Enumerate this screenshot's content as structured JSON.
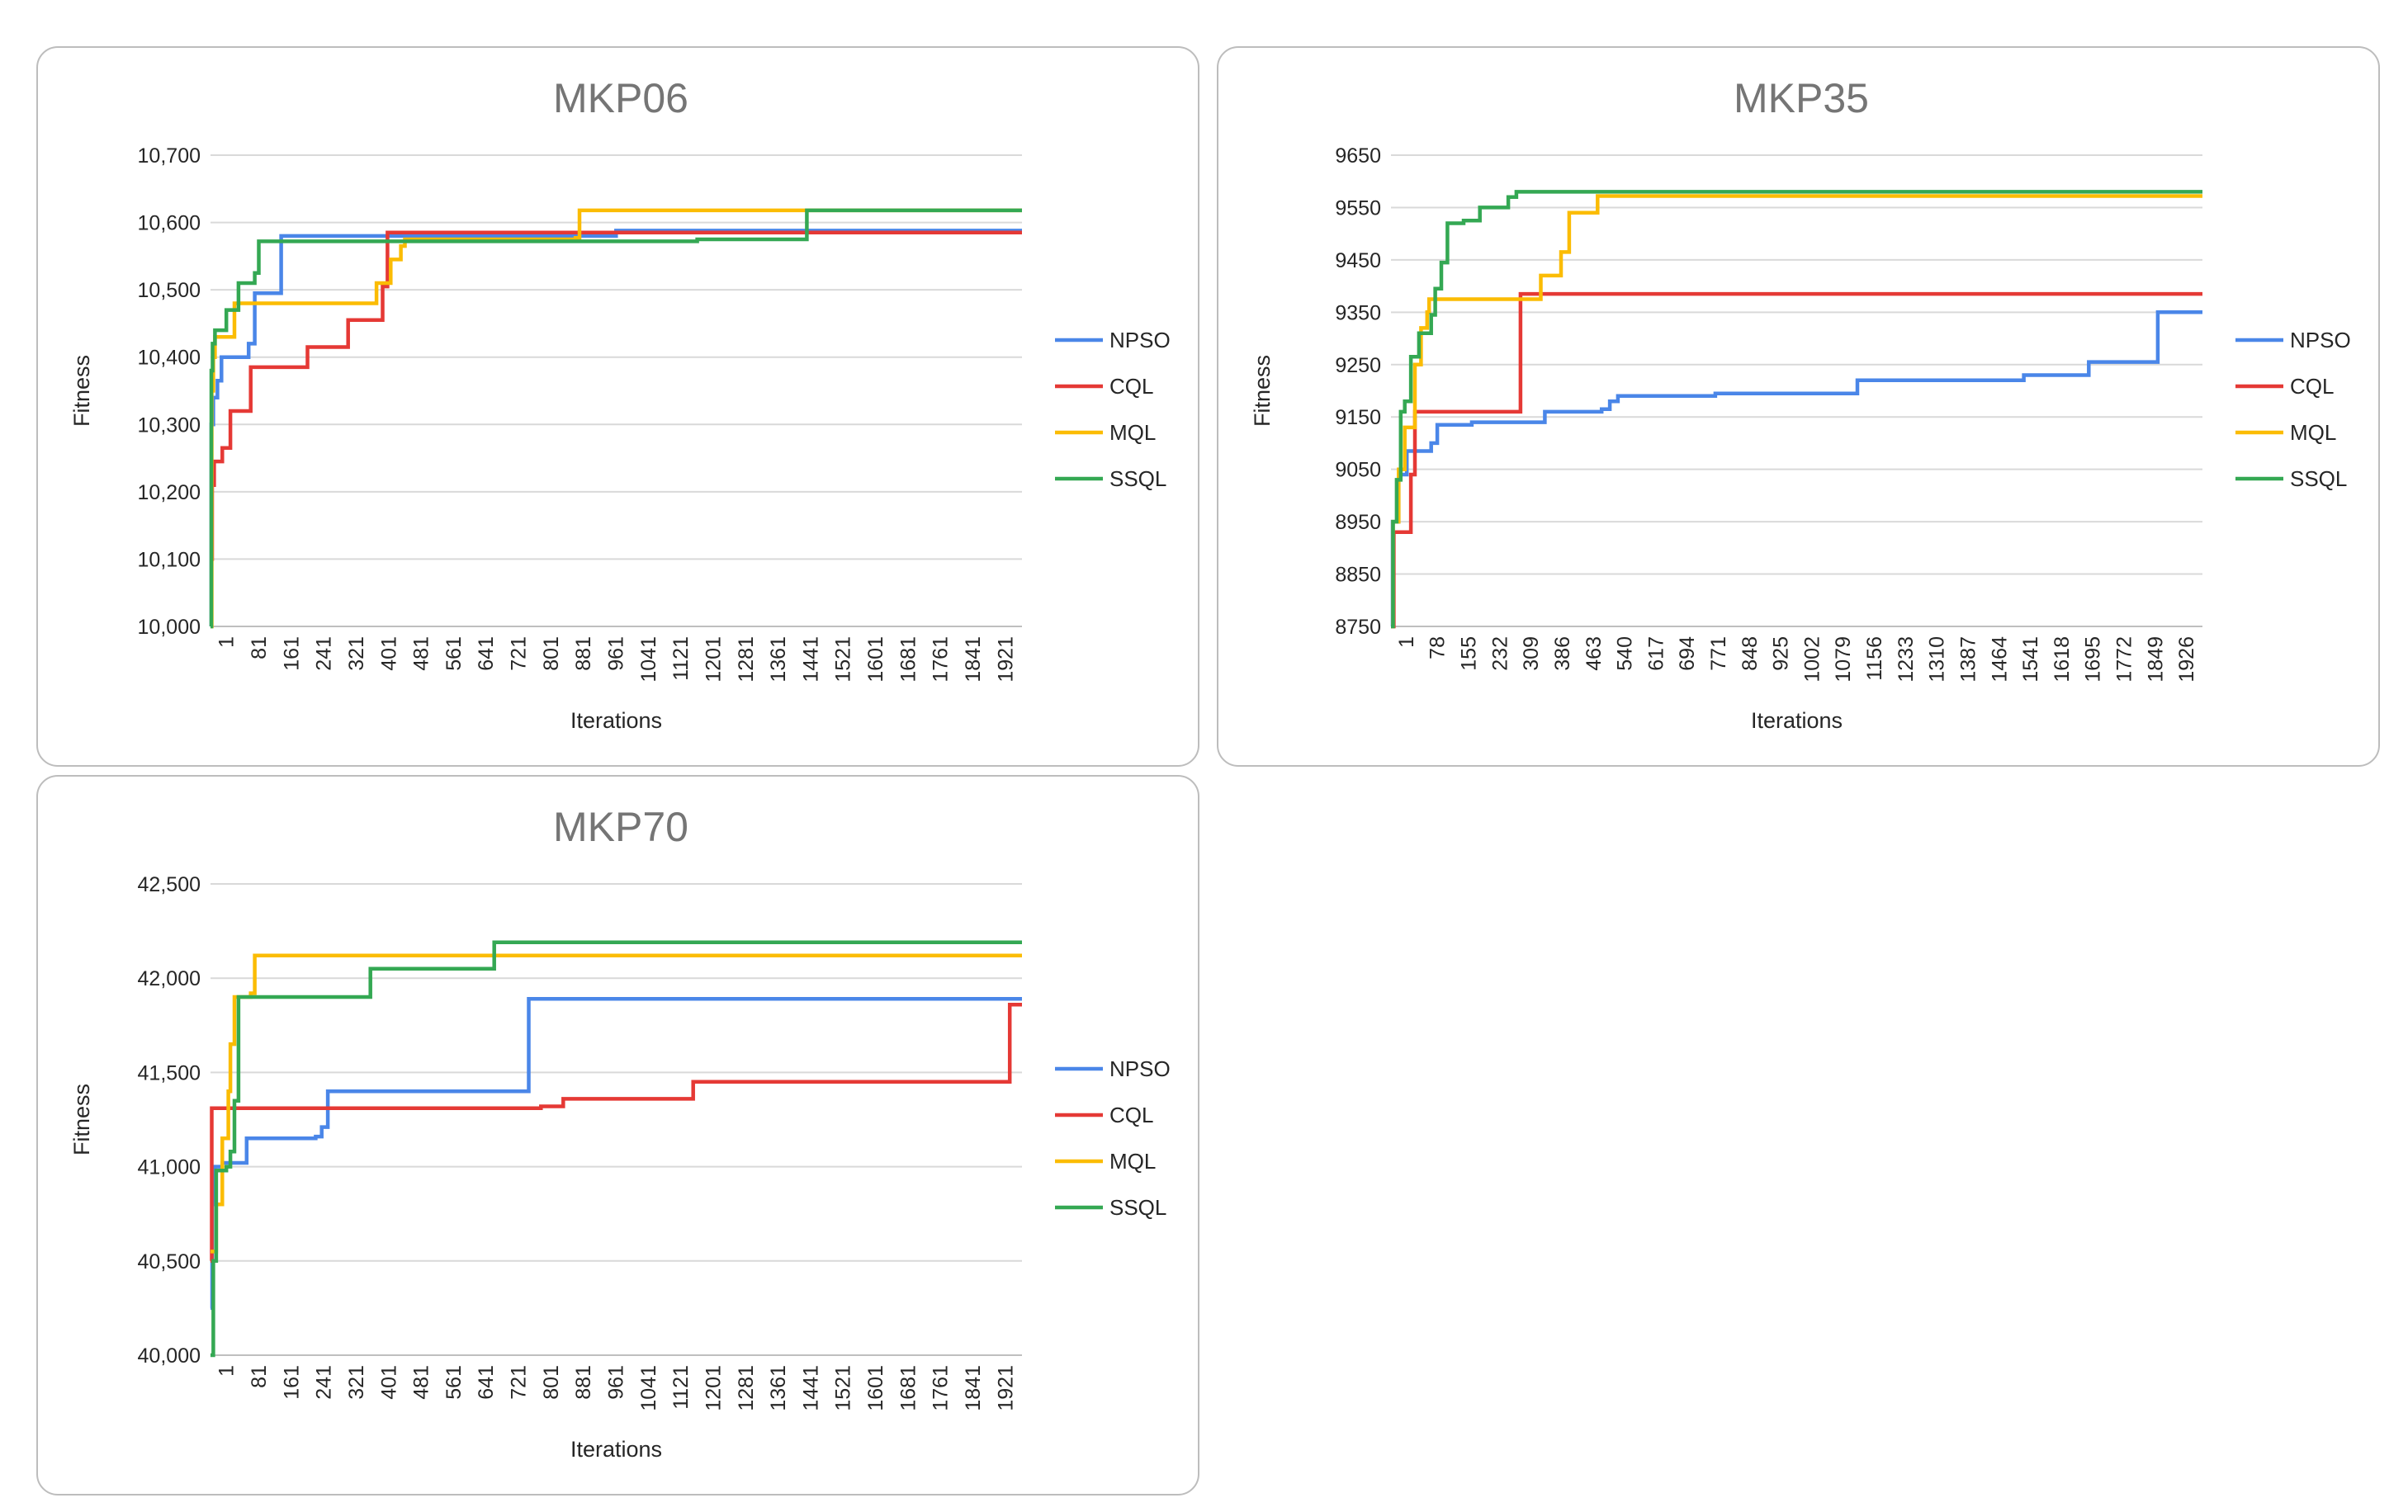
{
  "colors": {
    "NPSO": "#4a86e8",
    "CQL": "#e53935",
    "MQL": "#fbbc04",
    "SSQL": "#34a853"
  },
  "chart_data": [
    {
      "type": "line",
      "title": "MKP06",
      "xlabel": "Iterations",
      "ylabel": "Fitness",
      "ylim": [
        10000,
        10700
      ],
      "xlim": [
        1,
        2000
      ],
      "yticks": [
        10000,
        10100,
        10200,
        10300,
        10400,
        10500,
        10600,
        10700
      ],
      "ytick_labels": [
        "10,000",
        "10,100",
        "10,200",
        "10,300",
        "10,400",
        "10,500",
        "10,600",
        "10,700"
      ],
      "xtick_labels": [
        "1",
        "81",
        "161",
        "241",
        "321",
        "401",
        "481",
        "561",
        "641",
        "721",
        "801",
        "881",
        "961",
        "1041",
        "1121",
        "1201",
        "1281",
        "1361",
        "1441",
        "1521",
        "1601",
        "1681",
        "1761",
        "1841",
        "1921"
      ],
      "series": [
        {
          "name": "NPSO",
          "step": [
            [
              1,
              10000
            ],
            [
              3,
              10300
            ],
            [
              8,
              10340
            ],
            [
              18,
              10365
            ],
            [
              28,
              10400
            ],
            [
              95,
              10420
            ],
            [
              110,
              10495
            ],
            [
              175,
              10580
            ],
            [
              1000,
              10588
            ],
            [
              2000,
              10588
            ]
          ]
        },
        {
          "name": "CQL",
          "step": [
            [
              1,
              10100
            ],
            [
              5,
              10210
            ],
            [
              10,
              10245
            ],
            [
              30,
              10265
            ],
            [
              50,
              10320
            ],
            [
              100,
              10385
            ],
            [
              240,
              10415
            ],
            [
              340,
              10455
            ],
            [
              425,
              10505
            ],
            [
              437,
              10585
            ],
            [
              2000,
              10585
            ]
          ]
        },
        {
          "name": "MQL",
          "step": [
            [
              1,
              10000
            ],
            [
              4,
              10350
            ],
            [
              8,
              10400
            ],
            [
              12,
              10430
            ],
            [
              60,
              10480
            ],
            [
              410,
              10510
            ],
            [
              445,
              10545
            ],
            [
              470,
              10565
            ],
            [
              480,
              10575
            ],
            [
              900,
              10577
            ],
            [
              910,
              10618
            ],
            [
              2000,
              10618
            ]
          ]
        },
        {
          "name": "SSQL",
          "step": [
            [
              1,
              10000
            ],
            [
              3,
              10380
            ],
            [
              6,
              10420
            ],
            [
              12,
              10440
            ],
            [
              40,
              10470
            ],
            [
              70,
              10510
            ],
            [
              110,
              10525
            ],
            [
              120,
              10572
            ],
            [
              1200,
              10575
            ],
            [
              1470,
              10618
            ],
            [
              2000,
              10618
            ]
          ]
        }
      ]
    },
    {
      "type": "line",
      "title": "MKP35",
      "xlabel": "Iterations",
      "ylabel": "Fitness",
      "ylim": [
        8750,
        9650
      ],
      "xlim": [
        1,
        2000
      ],
      "yticks": [
        8750,
        8850,
        8950,
        9050,
        9150,
        9250,
        9350,
        9450,
        9550,
        9650
      ],
      "ytick_labels": [
        "8750",
        "8850",
        "8950",
        "9050",
        "9150",
        "9250",
        "9350",
        "9450",
        "9550",
        "9650"
      ],
      "xtick_labels": [
        "1",
        "78",
        "155",
        "232",
        "309",
        "386",
        "463",
        "540",
        "617",
        "694",
        "771",
        "848",
        "925",
        "1002",
        "1079",
        "1156",
        "1233",
        "1310",
        "1387",
        "1464",
        "1541",
        "1618",
        "1695",
        "1772",
        "1849",
        "1926"
      ],
      "series": [
        {
          "name": "NPSO",
          "step": [
            [
              1,
              8750
            ],
            [
              5,
              8950
            ],
            [
              20,
              9040
            ],
            [
              40,
              9085
            ],
            [
              100,
              9100
            ],
            [
              115,
              9135
            ],
            [
              200,
              9140
            ],
            [
              380,
              9160
            ],
            [
              520,
              9165
            ],
            [
              540,
              9180
            ],
            [
              560,
              9190
            ],
            [
              800,
              9195
            ],
            [
              1150,
              9220
            ],
            [
              1560,
              9230
            ],
            [
              1720,
              9255
            ],
            [
              1890,
              9350
            ],
            [
              2000,
              9350
            ]
          ]
        },
        {
          "name": "CQL",
          "step": [
            [
              1,
              8750
            ],
            [
              8,
              8930
            ],
            [
              50,
              9040
            ],
            [
              60,
              9160
            ],
            [
              320,
              9385
            ],
            [
              2000,
              9385
            ]
          ]
        },
        {
          "name": "MQL",
          "step": [
            [
              1,
              8750
            ],
            [
              6,
              8950
            ],
            [
              20,
              9050
            ],
            [
              35,
              9130
            ],
            [
              60,
              9250
            ],
            [
              75,
              9320
            ],
            [
              90,
              9350
            ],
            [
              95,
              9375
            ],
            [
              370,
              9420
            ],
            [
              420,
              9465
            ],
            [
              440,
              9540
            ],
            [
              510,
              9572
            ],
            [
              2000,
              9572
            ]
          ]
        },
        {
          "name": "SSQL",
          "step": [
            [
              1,
              8750
            ],
            [
              6,
              8950
            ],
            [
              15,
              9030
            ],
            [
              25,
              9160
            ],
            [
              35,
              9180
            ],
            [
              50,
              9265
            ],
            [
              70,
              9310
            ],
            [
              100,
              9345
            ],
            [
              110,
              9395
            ],
            [
              125,
              9445
            ],
            [
              140,
              9520
            ],
            [
              180,
              9525
            ],
            [
              220,
              9550
            ],
            [
              290,
              9570
            ],
            [
              310,
              9580
            ],
            [
              2000,
              9580
            ]
          ]
        }
      ]
    },
    {
      "type": "line",
      "title": "MKP70",
      "xlabel": "Iterations",
      "ylabel": "Fitness",
      "ylim": [
        40000,
        42500
      ],
      "xlim": [
        1,
        2000
      ],
      "yticks": [
        40000,
        40500,
        41000,
        41500,
        42000,
        42500
      ],
      "ytick_labels": [
        "40,000",
        "40,500",
        "41,000",
        "41,500",
        "42,000",
        "42,500"
      ],
      "xtick_labels": [
        "1",
        "81",
        "161",
        "241",
        "321",
        "401",
        "481",
        "561",
        "641",
        "721",
        "801",
        "881",
        "961",
        "1041",
        "1121",
        "1201",
        "1281",
        "1361",
        "1441",
        "1521",
        "1601",
        "1681",
        "1761",
        "1841",
        "1921"
      ],
      "series": [
        {
          "name": "NPSO",
          "step": [
            [
              1,
              40250
            ],
            [
              5,
              40800
            ],
            [
              12,
              41000
            ],
            [
              30,
              41020
            ],
            [
              90,
              41150
            ],
            [
              260,
              41160
            ],
            [
              275,
              41210
            ],
            [
              290,
              41400
            ],
            [
              785,
              41890
            ],
            [
              2000,
              41890
            ]
          ]
        },
        {
          "name": "CQL",
          "step": [
            [
              1,
              40500
            ],
            [
              4,
              41310
            ],
            [
              815,
              41320
            ],
            [
              870,
              41360
            ],
            [
              1190,
              41450
            ],
            [
              1970,
              41860
            ],
            [
              2000,
              41860
            ]
          ]
        },
        {
          "name": "MQL",
          "step": [
            [
              1,
              40550
            ],
            [
              15,
              40800
            ],
            [
              30,
              41150
            ],
            [
              45,
              41400
            ],
            [
              50,
              41650
            ],
            [
              60,
              41900
            ],
            [
              100,
              41920
            ],
            [
              110,
              42120
            ],
            [
              2000,
              42120
            ]
          ]
        },
        {
          "name": "SSQL",
          "step": [
            [
              1,
              40000
            ],
            [
              8,
              40500
            ],
            [
              15,
              40980
            ],
            [
              40,
              41000
            ],
            [
              50,
              41080
            ],
            [
              60,
              41350
            ],
            [
              70,
              41900
            ],
            [
              395,
              42050
            ],
            [
              700,
              42190
            ],
            [
              2000,
              42190
            ]
          ]
        }
      ]
    }
  ]
}
